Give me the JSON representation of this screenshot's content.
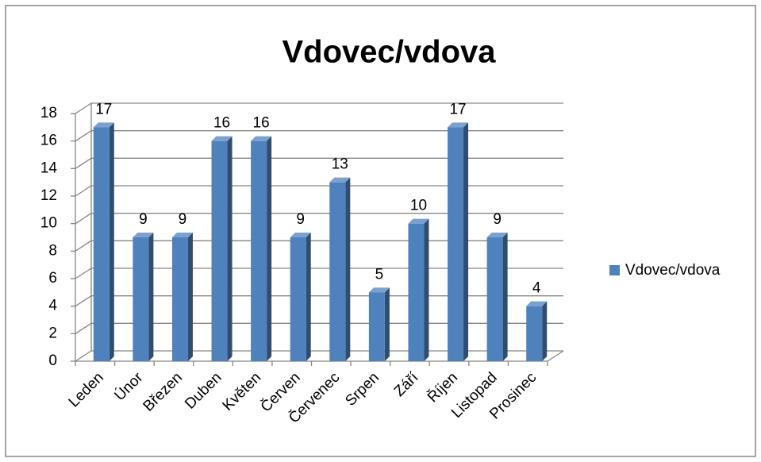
{
  "chart_data": {
    "type": "bar3d",
    "title": "Vdovec/vdova",
    "categories": [
      "Leden",
      "Únor",
      "Březen",
      "Duben",
      "Květen",
      "Červen",
      "Červenec",
      "Srpen",
      "Září",
      "Říjen",
      "Listopad",
      "Prosinec"
    ],
    "series": [
      {
        "name": "Vdovec/vdova",
        "color": "#4f81bd",
        "values": [
          17,
          9,
          9,
          16,
          16,
          9,
          13,
          5,
          10,
          17,
          9,
          4
        ]
      }
    ],
    "ylim": [
      0,
      18
    ],
    "yticks": [
      0,
      2,
      4,
      6,
      8,
      10,
      12,
      14,
      16,
      18
    ],
    "grid": true,
    "legend": "right"
  }
}
